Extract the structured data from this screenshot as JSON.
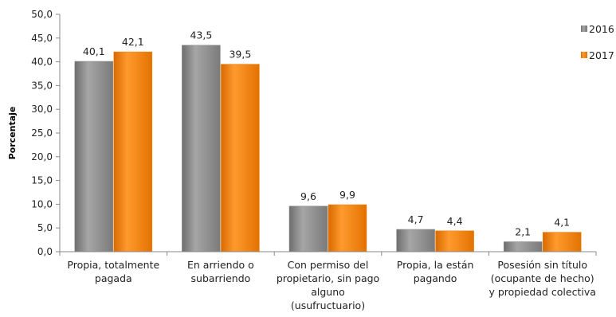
{
  "chart_data": {
    "type": "bar",
    "ylabel": "Porcentaje",
    "ylim": [
      0,
      50
    ],
    "yticks": [
      "0,0",
      "5,0",
      "10,0",
      "15,0",
      "20,0",
      "25,0",
      "30,0",
      "35,0",
      "40,0",
      "45,0",
      "50,0"
    ],
    "grid": false,
    "legend": "right",
    "categories": [
      [
        "Propia, totalmente",
        "pagada"
      ],
      [
        "En arriendo o",
        "subarriendo"
      ],
      [
        "Con permiso del",
        "propietario, sin pago",
        "alguno",
        "(usufructuario)"
      ],
      [
        "Propia, la están",
        "pagando"
      ],
      [
        "Posesión sin título",
        "(ocupante de hecho)",
        "y propiedad colectiva"
      ]
    ],
    "series": [
      {
        "name": "2016",
        "color": "#8c8c8c",
        "values": [
          40.1,
          43.5,
          9.6,
          4.7,
          2.1
        ],
        "labels": [
          "40,1",
          "43,5",
          "9,6",
          "4,7",
          "2,1"
        ]
      },
      {
        "name": "2017",
        "color": "#f07f09",
        "values": [
          42.1,
          39.5,
          9.9,
          4.4,
          4.1
        ],
        "labels": [
          "42,1",
          "39,5",
          "9,9",
          "4,4",
          "4,1"
        ]
      }
    ]
  }
}
